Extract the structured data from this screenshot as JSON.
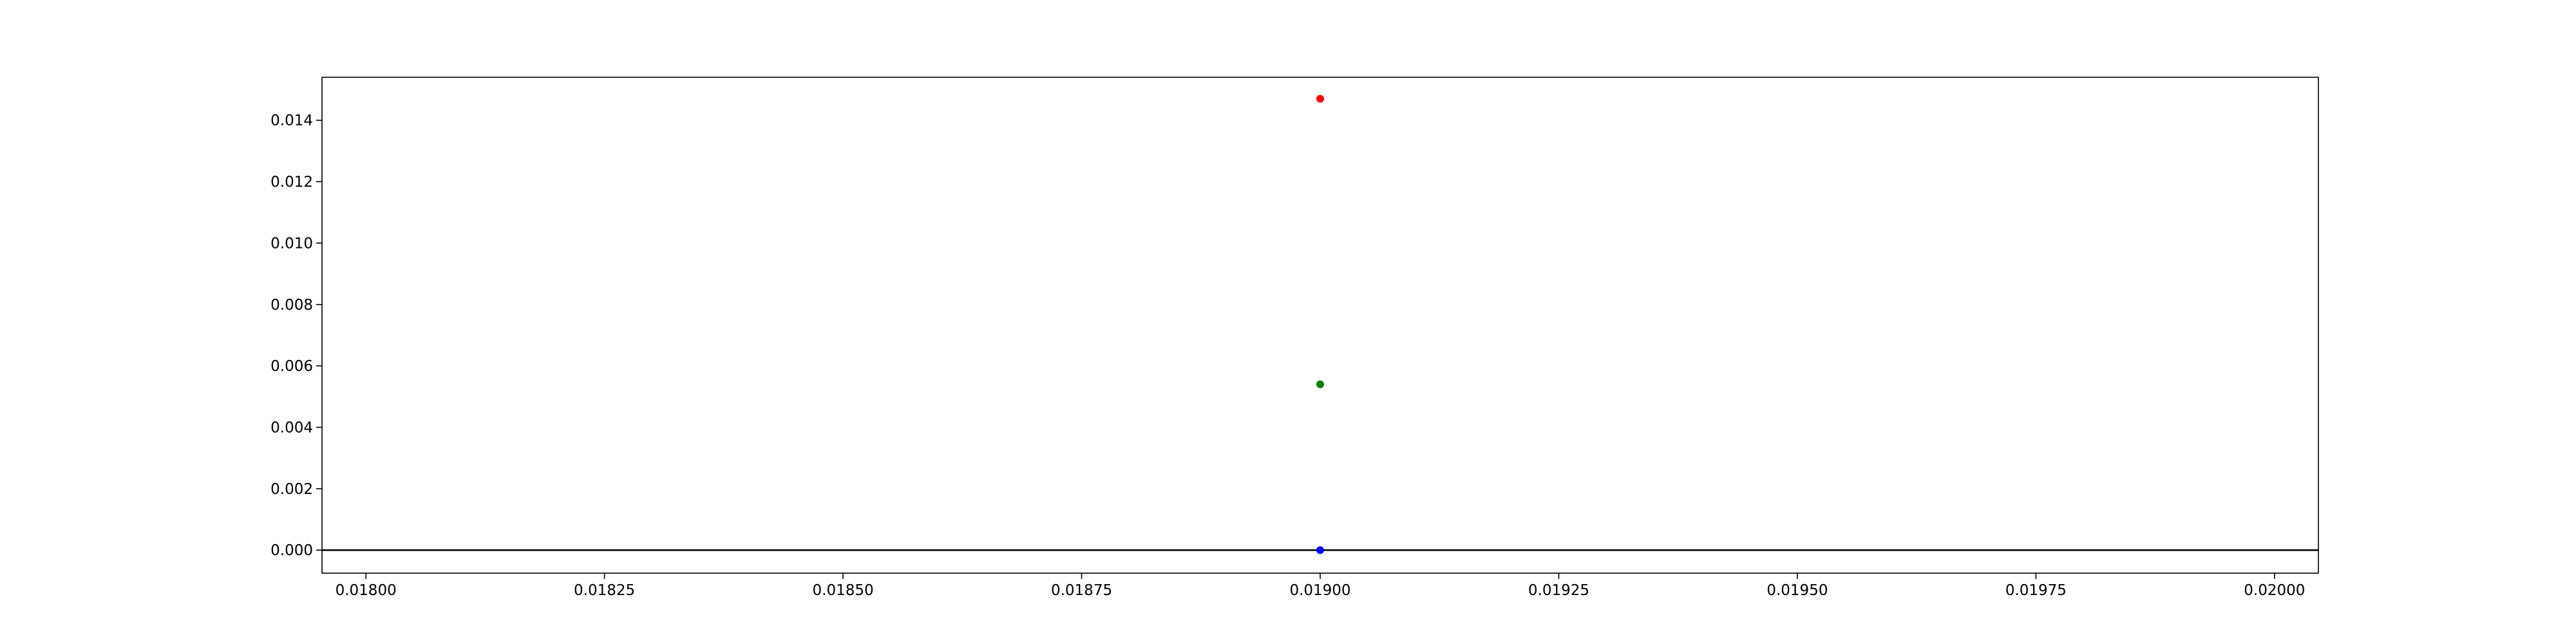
{
  "chart_data": {
    "type": "scatter",
    "title": "",
    "xlabel": "",
    "ylabel": "",
    "xlim": [
      0.017954,
      0.020046
    ],
    "ylim": [
      -0.00075,
      0.0154
    ],
    "grid": false,
    "x_ticks": [
      "0.01800",
      "0.01825",
      "0.01850",
      "0.01875",
      "0.01900",
      "0.01925",
      "0.01950",
      "0.01975",
      "0.02000"
    ],
    "x_tick_values": [
      0.018,
      0.01825,
      0.0185,
      0.01875,
      0.019,
      0.01925,
      0.0195,
      0.01975,
      0.02
    ],
    "y_ticks": [
      "0.000",
      "0.002",
      "0.004",
      "0.006",
      "0.008",
      "0.010",
      "0.012",
      "0.014"
    ],
    "y_tick_values": [
      0.0,
      0.002,
      0.004,
      0.006,
      0.008,
      0.01,
      0.012,
      0.014
    ],
    "reference_line_y": 0.0,
    "points": [
      {
        "x": 0.019,
        "y": 0.0147,
        "color": "#ff0000"
      },
      {
        "x": 0.019,
        "y": 0.0054,
        "color": "#008000"
      },
      {
        "x": 0.019,
        "y": 0.0,
        "color": "#0000ff"
      }
    ]
  }
}
